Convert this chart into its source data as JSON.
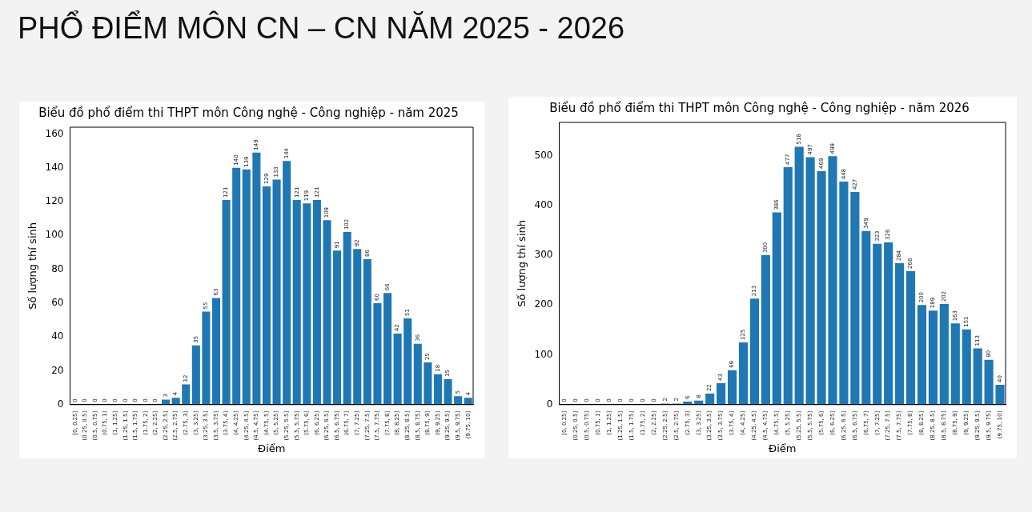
{
  "chart_data": [
    {
      "type": "other",
      "title": "PHỔ ĐIỂM MÔN CN – CN NĂM 2025 - 2026"
    },
    {
      "type": "bar",
      "title": "Biểu đồ phổ điểm thi THPT môn Công nghệ - Công nghiệp - năm 2025",
      "xlabel": "Điểm",
      "ylabel": "Số lượng thí sinh",
      "categories": [
        "[0, 0.25]",
        "(0.25, 0.5]",
        "(0.5, 0.75]",
        "(0.75, 1]",
        "(1, 1.25]",
        "(1.25, 1.5]",
        "(1.5, 1.75]",
        "(1.75, 2]",
        "(2, 2.25]",
        "(2.25, 2.5]",
        "(2.5, 2.75]",
        "(2.75, 3]",
        "(3, 3.25]",
        "(3.25, 3.5]",
        "(3.5, 3.75]",
        "(3.75, 4]",
        "(4, 4.25]",
        "(4.25, 4.5]",
        "(4.5, 4.75]",
        "(4.75, 5]",
        "(5, 5.25]",
        "(5.25, 5.5]",
        "(5.5, 5.75]",
        "(5.75, 6]",
        "(6, 6.25]",
        "(6.25, 6.5]",
        "(6.5, 6.75]",
        "(6.75, 7]",
        "(7, 7.25]",
        "(7.25, 7.5]",
        "(7.5, 7.75]",
        "(7.75, 8]",
        "(8, 8.25]",
        "(8.25, 8.5]",
        "(8.5, 8.75]",
        "(8.75, 9]",
        "(9, 9.25]",
        "(9.25, 9.5]",
        "(9.5, 9.75]",
        "(9.75, 10]"
      ],
      "values": [
        0,
        0,
        0,
        0,
        0,
        0,
        0,
        0,
        0,
        3,
        4,
        12,
        35,
        55,
        63,
        121,
        140,
        139,
        149,
        129,
        133,
        144,
        121,
        119,
        121,
        109,
        91,
        102,
        92,
        86,
        60,
        66,
        42,
        51,
        36,
        25,
        18,
        15,
        5,
        4
      ],
      "color": "#1f77b4",
      "ylim": [
        0,
        164
      ],
      "yticks": [
        0,
        20,
        40,
        60,
        80,
        100,
        120,
        140,
        160
      ],
      "data_labels": true
    },
    {
      "type": "bar",
      "title": "Biểu đồ phổ điểm thi THPT môn Công nghệ - Công nghiệp - năm 2026",
      "xlabel": "Điểm",
      "ylabel": "Số lượng thí sinh",
      "categories": [
        "[0, 0.25]",
        "(0.25, 0.5]",
        "(0.5, 0.75]",
        "(0.75, 1]",
        "(1, 1.25]",
        "(1.25, 1.5]",
        "(1.5, 1.75]",
        "(1.75, 2]",
        "(2, 2.25]",
        "(2.25, 2.5]",
        "(2.5, 2.75]",
        "(2.75, 3]",
        "(3, 3.25]",
        "(3.25, 3.5]",
        "(3.5, 3.75]",
        "(3.75, 4]",
        "(4, 4.25]",
        "(4.25, 4.5]",
        "(4.5, 4.75]",
        "(4.75, 5]",
        "(5, 5.25]",
        "(5.25, 5.5]",
        "(5.5, 5.75]",
        "(5.75, 6]",
        "(6, 6.25]",
        "(6.25, 6.5]",
        "(6.5, 6.75]",
        "(6.75, 7]",
        "(7, 7.25]",
        "(7.25, 7.5]",
        "(7.5, 7.75]",
        "(7.75, 8]",
        "(8, 8.25]",
        "(8.25, 8.5]",
        "(8.5, 8.75]",
        "(8.75, 9]",
        "(9, 9.25]",
        "(9.25, 9.5]",
        "(9.5, 9.75]",
        "(9.75, 10]"
      ],
      "values": [
        0,
        0,
        0,
        0,
        0,
        0,
        0,
        0,
        0,
        2,
        2,
        6,
        8,
        22,
        43,
        69,
        125,
        213,
        300,
        386,
        477,
        518,
        497,
        469,
        499,
        448,
        427,
        349,
        323,
        326,
        284,
        268,
        200,
        189,
        202,
        163,
        151,
        113,
        90,
        40
      ],
      "color": "#1f77b4",
      "ylim": [
        0,
        567
      ],
      "yticks": [
        0,
        100,
        200,
        300,
        400,
        500
      ],
      "data_labels": true
    }
  ]
}
